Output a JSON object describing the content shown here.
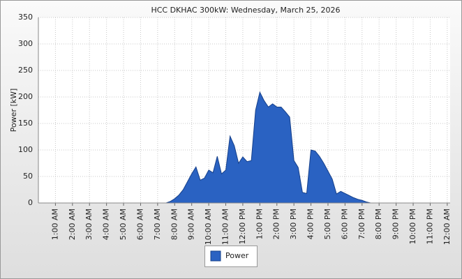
{
  "chart_data": {
    "type": "area",
    "title": "HCC DKHAC 300kW: Wednesday, March 25, 2026",
    "y_label": "Power [kW]",
    "series": [
      {
        "name": "Power",
        "color": "#2a62c2",
        "values": [
          0,
          3,
          8,
          15,
          25,
          40,
          55,
          68,
          43,
          47,
          62,
          57,
          88,
          55,
          62,
          126,
          108,
          75,
          87,
          78,
          80,
          175,
          209,
          193,
          181,
          187,
          181,
          181,
          172,
          162,
          80,
          67,
          20,
          18,
          100,
          98,
          88,
          75,
          60,
          45,
          17,
          22,
          18,
          14,
          10,
          7,
          5,
          2,
          0
        ]
      }
    ],
    "x": [
      7.5,
      7.75,
      8,
      8.25,
      8.5,
      8.75,
      9,
      9.25,
      9.5,
      9.75,
      10,
      10.25,
      10.5,
      10.75,
      11,
      11.25,
      11.5,
      11.75,
      12,
      12.25,
      12.5,
      12.75,
      13,
      13.25,
      13.5,
      13.75,
      14,
      14.25,
      14.5,
      14.75,
      15,
      15.25,
      15.5,
      15.75,
      16,
      16.25,
      16.5,
      16.75,
      17,
      17.25,
      17.5,
      17.75,
      18,
      18.25,
      18.5,
      18.75,
      19,
      19.25,
      19.5
    ],
    "xlim": [
      0,
      24.17
    ],
    "xticks": [
      {
        "value": 1,
        "label": "1:00 AM"
      },
      {
        "value": 2,
        "label": "2:00 AM"
      },
      {
        "value": 3,
        "label": "3:00 AM"
      },
      {
        "value": 4,
        "label": "4:00 AM"
      },
      {
        "value": 5,
        "label": "5:00 AM"
      },
      {
        "value": 6,
        "label": "6:00 AM"
      },
      {
        "value": 7,
        "label": "7:00 AM"
      },
      {
        "value": 8,
        "label": "8:00 AM"
      },
      {
        "value": 9,
        "label": "9:00 AM"
      },
      {
        "value": 10,
        "label": "10:00 AM"
      },
      {
        "value": 11,
        "label": "11:00 AM"
      },
      {
        "value": 12,
        "label": "12:00 PM"
      },
      {
        "value": 13,
        "label": "1:00 PM"
      },
      {
        "value": 14,
        "label": "2:00 PM"
      },
      {
        "value": 15,
        "label": "3:00 PM"
      },
      {
        "value": 16,
        "label": "4:00 PM"
      },
      {
        "value": 17,
        "label": "5:00 PM"
      },
      {
        "value": 18,
        "label": "6:00 PM"
      },
      {
        "value": 19,
        "label": "7:00 PM"
      },
      {
        "value": 20,
        "label": "8:00 PM"
      },
      {
        "value": 21,
        "label": "9:00 PM"
      },
      {
        "value": 22,
        "label": "10:00 PM"
      },
      {
        "value": 23,
        "label": "11:00 PM"
      },
      {
        "value": 24,
        "label": "12:00 AM"
      }
    ],
    "ylim": [
      0,
      350
    ],
    "yticks": [
      0,
      50,
      100,
      150,
      200,
      250,
      300,
      350
    ],
    "grid": true,
    "legend": "bottom"
  }
}
